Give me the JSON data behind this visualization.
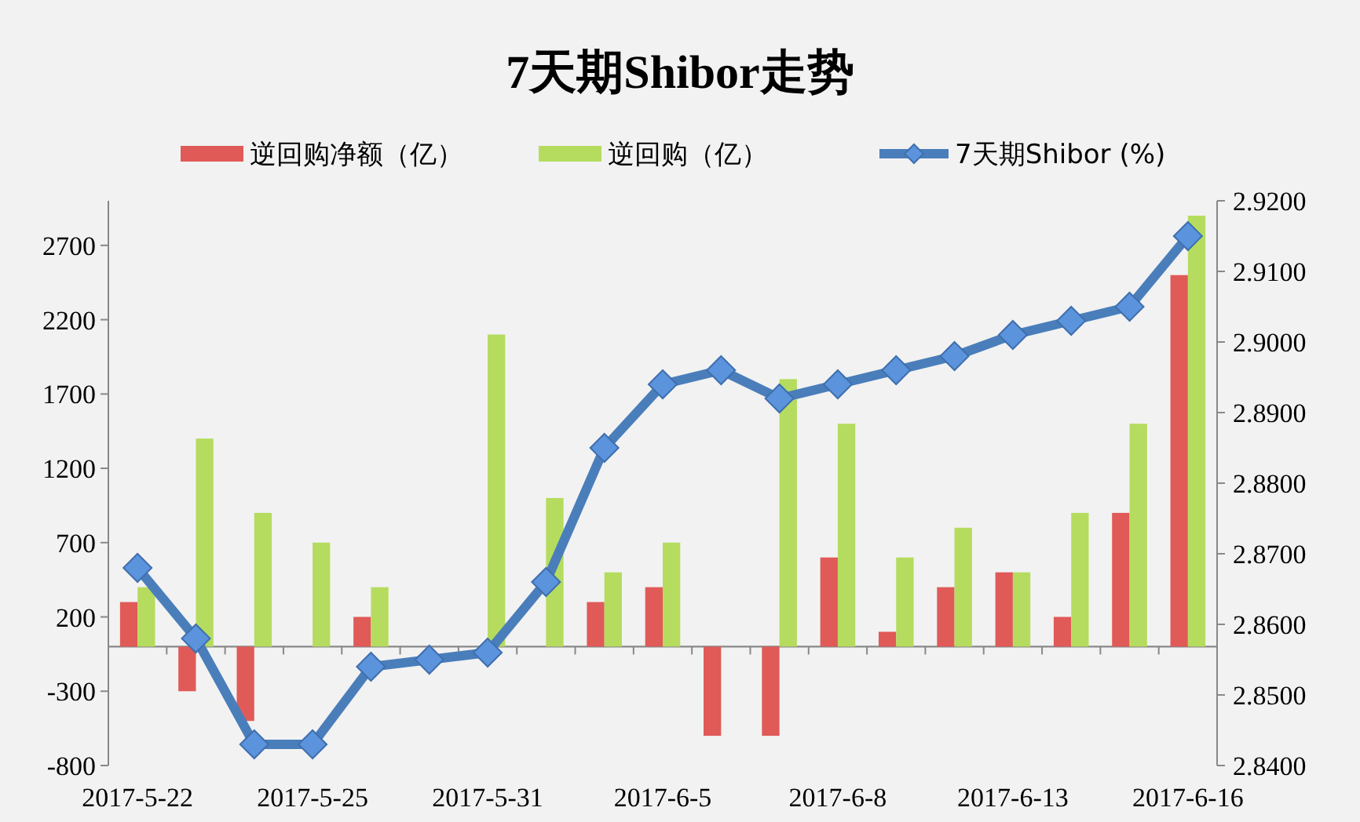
{
  "chart_data": {
    "type": "bar",
    "title": "7天期Shibor走势",
    "categories": [
      "2017-5-22",
      null,
      null,
      "2017-5-25",
      null,
      null,
      "2017-5-31",
      null,
      null,
      "2017-6-5",
      null,
      null,
      "2017-6-8",
      null,
      null,
      "2017-6-13",
      null,
      null,
      "2017-6-16"
    ],
    "series": [
      {
        "name": "逆回购净额（亿）",
        "color": "#e05a58",
        "values": [
          300,
          -300,
          -500,
          0,
          200,
          0,
          0,
          0,
          300,
          400,
          -600,
          -600,
          600,
          100,
          400,
          500,
          200,
          900,
          2500
        ]
      },
      {
        "name": "逆回购（亿）",
        "color": "#b5dc5e",
        "values": [
          400,
          1400,
          900,
          700,
          400,
          0,
          2100,
          1000,
          500,
          700,
          0,
          1800,
          1500,
          600,
          800,
          500,
          900,
          1500,
          2900
        ]
      },
      {
        "name": "7天期Shibor (%)",
        "type": "line",
        "axis": "y2",
        "color": "#4a7ebb",
        "values": [
          2.868,
          2.858,
          2.843,
          2.843,
          2.854,
          2.855,
          2.856,
          2.866,
          2.885,
          2.894,
          2.896,
          2.892,
          2.894,
          2.896,
          2.898,
          2.901,
          2.903,
          2.905,
          2.915
        ]
      }
    ],
    "ylim": [
      -800,
      3000
    ],
    "yticks": [
      -800,
      -300,
      200,
      700,
      1200,
      1700,
      2200,
      2700
    ],
    "y2lim": [
      2.84,
      2.92
    ],
    "y2ticks": [
      {
        "value": 2.84,
        "label": "2.8400"
      },
      {
        "value": 2.85,
        "label": "2.8500"
      },
      {
        "value": 2.86,
        "label": "2.8600"
      },
      {
        "value": 2.87,
        "label": "2.8700"
      },
      {
        "value": 2.88,
        "label": "2.8800"
      },
      {
        "value": 2.89,
        "label": "2.8900"
      },
      {
        "value": 2.9,
        "label": "2.9000"
      },
      {
        "value": 2.91,
        "label": "2.9100"
      },
      {
        "value": 2.92,
        "label": "2.9200"
      }
    ],
    "legend": "top",
    "marker": "diamond",
    "line_style": "solid"
  }
}
